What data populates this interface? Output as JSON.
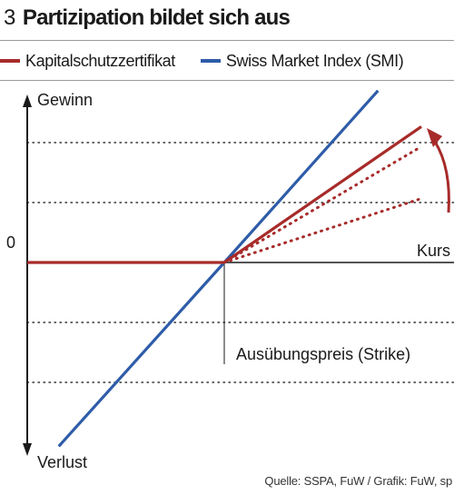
{
  "figure": {
    "number": "3",
    "title": "Partizipation bildet sich aus",
    "source": "Quelle: SSPA, FuW / Grafik: FuW, sp"
  },
  "colors": {
    "certificate": "#a72b2a",
    "smi": "#2e5ca8",
    "axis": "#1a1a1a",
    "grid": "#333333"
  },
  "chart_data": {
    "type": "line",
    "title": "Partizipation bildet sich aus",
    "ylabel_top": "Gewinn",
    "ylabel_bottom": "Verlust",
    "xlabel": "Kurs",
    "y_zero_label": "0",
    "strike_label": "Ausübungspreis (Strike)",
    "grid": "dotted horizontal",
    "legend_position": "top",
    "xlim": [
      0,
      10
    ],
    "ylim": [
      -5,
      5
    ],
    "strike": 5,
    "gridlines": [
      -3,
      -1.5,
      1.5,
      3
    ],
    "series": [
      {
        "name": "Kapitalschutzzertifikat",
        "color": "#a72b2a",
        "style": "solid",
        "x": [
          0,
          5,
          10
        ],
        "y": [
          0,
          0,
          3.4
        ]
      },
      {
        "name": "Swiss Market Index (SMI)",
        "color": "#2e5ca8",
        "style": "solid",
        "x": [
          0.8,
          5,
          8.9
        ],
        "y": [
          -4.6,
          0,
          4.3
        ]
      }
    ],
    "variants": [
      {
        "color": "#a72b2a",
        "style": "dotted",
        "x": [
          5,
          10
        ],
        "y": [
          0,
          2.9
        ]
      },
      {
        "color": "#a72b2a",
        "style": "dotted",
        "x": [
          5,
          10
        ],
        "y": [
          0,
          1.6
        ]
      }
    ]
  }
}
